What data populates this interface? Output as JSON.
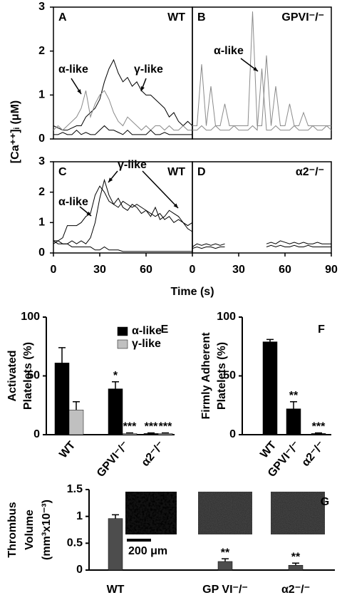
{
  "chart_data": [
    {
      "type": "line",
      "label": "A",
      "title": "WT",
      "ylabel": "[Ca⁺⁺]ᵢ (μM)",
      "xlim": [
        0,
        90
      ],
      "ylim": [
        0,
        3
      ],
      "yticks": [
        0,
        1,
        2,
        3
      ],
      "annotations": [
        "α-like",
        "γ-like"
      ],
      "x": [
        0,
        3,
        6,
        9,
        12,
        15,
        18,
        21,
        24,
        27,
        30,
        33,
        36,
        39,
        42,
        45,
        48,
        51,
        54,
        57,
        60,
        63,
        66,
        69,
        72,
        75,
        78,
        81,
        84,
        87,
        90
      ],
      "series": [
        {
          "color": "#000000",
          "values": [
            0.3,
            0.25,
            0.2,
            0.2,
            0.25,
            0.3,
            0.3,
            0.5,
            0.6,
            0.7,
            0.9,
            1.3,
            1.6,
            1.8,
            1.5,
            1.3,
            1.4,
            1.2,
            1.3,
            1.1,
            1.0,
            1.0,
            0.9,
            0.8,
            0.7,
            0.5,
            0.6,
            0.4,
            0.3,
            0.4,
            0.3
          ]
        },
        {
          "color": "#8a8a8a",
          "values": [
            0.2,
            0.3,
            0.2,
            0.3,
            0.4,
            0.5,
            0.7,
            1.1,
            0.5,
            0.8,
            1.0,
            1.1,
            0.9,
            0.6,
            0.4,
            0.3,
            0.5,
            0.4,
            0.3,
            0.2,
            0.3,
            0.2,
            0.3,
            0.3,
            0.2,
            0.3,
            0.2,
            0.2,
            0.3,
            0.2,
            0.2
          ]
        },
        {
          "color": "#000000",
          "values": [
            0.1,
            0.1,
            0.15,
            0.1,
            0.1,
            0.2,
            0.1,
            0.15,
            0.1,
            0.1,
            0.2,
            0.3,
            0.2,
            0.2,
            0.15,
            0.1,
            0.2,
            0.1,
            0.1,
            0.1,
            0.1,
            0.2,
            0.1,
            0.1,
            0.15,
            0.1,
            0.1,
            0.1,
            0.1,
            0.1,
            0.1
          ]
        }
      ]
    },
    {
      "type": "line",
      "label": "B",
      "title": "GPVI⁻/⁻",
      "xlim": [
        0,
        90
      ],
      "ylim": [
        0,
        3
      ],
      "annotations": [
        "α-like"
      ],
      "x": [
        0,
        3,
        6,
        9,
        12,
        15,
        18,
        21,
        24,
        27,
        30,
        33,
        36,
        39,
        42,
        45,
        48,
        51,
        54,
        57,
        60,
        63,
        66,
        69,
        72,
        75,
        78,
        81,
        84,
        87,
        90
      ],
      "series": [
        {
          "color": "#8a8a8a",
          "values": [
            0.3,
            0.3,
            1.7,
            0.3,
            1.2,
            0.3,
            0.3,
            0.8,
            0.3,
            0.3,
            0.3,
            0.3,
            0.3,
            2.9,
            0.3,
            0.3,
            1.9,
            0.3,
            1.2,
            0.3,
            0.3,
            0.8,
            0.3,
            0.3,
            0.6,
            0.3,
            0.3,
            0.3,
            0.3,
            0.3,
            0.3
          ]
        },
        {
          "color": "#8a8a8a",
          "values": [
            0.2,
            0.2,
            0.3,
            0.2,
            0.2,
            0.3,
            0.2,
            0.2,
            0.2,
            0.3,
            0.2,
            0.2,
            0.2,
            0.3,
            0.2,
            1.6,
            0.2,
            0.2,
            0.3,
            0.2,
            0.2,
            0.2,
            0.3,
            0.2,
            0.2,
            0.2,
            0.3,
            0.2,
            0.2,
            0.3,
            0.2
          ]
        }
      ]
    },
    {
      "type": "line",
      "label": "C",
      "title": "WT",
      "xlabel": "Time (s)",
      "xlim": [
        0,
        90
      ],
      "ylim": [
        0,
        3
      ],
      "yticks": [
        0,
        1,
        2,
        3
      ],
      "xticks": [
        0,
        30,
        60
      ],
      "annotations": [
        "α-like",
        "γ-like"
      ],
      "x": [
        0,
        3,
        6,
        9,
        12,
        15,
        18,
        21,
        24,
        27,
        30,
        33,
        36,
        39,
        42,
        45,
        48,
        51,
        54,
        57,
        60,
        63,
        66,
        69,
        72,
        75,
        78,
        81,
        84,
        87,
        90
      ],
      "series": [
        {
          "color": "#000000",
          "values": [
            0.4,
            0.4,
            0.5,
            0.9,
            0.9,
            0.9,
            1.0,
            1.2,
            1.3,
            1.9,
            2.2,
            2.0,
            1.7,
            1.6,
            1.5,
            1.7,
            1.6,
            1.5,
            1.6,
            1.5,
            1.4,
            1.3,
            1.2,
            1.3,
            1.1,
            1.2,
            1.0,
            1.1,
            1.0,
            0.9,
            1.0
          ]
        },
        {
          "color": "#000000",
          "values": [
            0.3,
            0.4,
            0.3,
            0.3,
            0.4,
            0.3,
            0.4,
            0.3,
            0.5,
            1.0,
            1.8,
            2.4,
            1.9,
            1.6,
            1.8,
            1.5,
            1.4,
            1.6,
            1.5,
            1.3,
            1.4,
            1.2,
            1.5,
            1.1,
            1.2,
            1.4,
            1.3,
            1.2,
            1.0,
            0.8,
            0.7
          ]
        },
        {
          "color": "#000000",
          "values": [
            0.4,
            0.3,
            0.3,
            0.3,
            0.2,
            0.2,
            0.2,
            0.2,
            0.2,
            0.1,
            0.1,
            0.2,
            0.1,
            0.1,
            0.1,
            0.05,
            0.05,
            0.05,
            0.05,
            0.05,
            0.05,
            0.05,
            0.05,
            0.05,
            0.05,
            0.05,
            0.05,
            0.05,
            0.05,
            0.05,
            0.05
          ]
        }
      ]
    },
    {
      "type": "line",
      "label": "D",
      "title": "α2⁻/⁻",
      "xlim": [
        0,
        90
      ],
      "ylim": [
        0,
        3
      ],
      "xticks": [
        0,
        30,
        60,
        90
      ],
      "x": [
        0,
        3,
        6,
        9,
        12,
        15,
        18,
        21,
        24,
        27,
        30,
        33,
        36,
        39,
        42,
        45,
        48,
        51,
        54,
        57,
        60,
        63,
        66,
        69,
        72,
        75,
        78,
        81,
        84,
        87,
        90
      ],
      "series": [
        {
          "color": "#000000",
          "values": [
            0.2,
            0.3,
            0.25,
            0.3,
            0.25,
            0.3,
            0.25,
            0.3,
            null,
            null,
            null,
            null,
            null,
            null,
            null,
            null,
            0.3,
            0.35,
            0.3,
            0.4,
            0.35,
            0.3,
            0.35,
            0.3,
            0.35,
            0.3,
            0.3,
            0.35,
            0.3,
            0.3,
            0.3
          ]
        },
        {
          "color": "#000000",
          "values": [
            0.15,
            0.2,
            0.15,
            0.2,
            0.2,
            0.15,
            0.2,
            0.2,
            null,
            null,
            null,
            null,
            null,
            null,
            null,
            null,
            0.2,
            0.25,
            0.2,
            0.25,
            0.2,
            0.2,
            0.25,
            0.2,
            0.2,
            0.25,
            0.2,
            0.2,
            0.2,
            0.2,
            0.2
          ]
        }
      ]
    },
    {
      "type": "bar",
      "label": "E",
      "ylabel": [
        "Activated",
        "Platelets (%)"
      ],
      "ylim": [
        0,
        100
      ],
      "yticks": [
        0,
        50,
        100
      ],
      "categories": [
        "WT",
        "GPVI⁻/⁻",
        "α2⁻/⁻"
      ],
      "series": [
        {
          "name": "α-like",
          "color": "#000000",
          "values": [
            61,
            39,
            1
          ],
          "errors": [
            13,
            6,
            0.5
          ],
          "significance": [
            null,
            "*",
            "***"
          ]
        },
        {
          "name": "γ-like",
          "color": "#c0c0c0",
          "values": [
            21,
            1,
            1
          ],
          "errors": [
            7,
            0.5,
            0.5
          ],
          "significance": [
            null,
            "***",
            "***"
          ]
        }
      ]
    },
    {
      "type": "bar",
      "label": "F",
      "ylabel": [
        "Firmly Adherent",
        "Platelets (%)"
      ],
      "ylim": [
        0,
        100
      ],
      "yticks": [
        0,
        50,
        100
      ],
      "categories": [
        "WT",
        "GPVI⁻/⁻",
        "α2⁻/⁻"
      ],
      "series": [
        {
          "color": "#000000",
          "values": [
            79,
            22,
            1
          ],
          "errors": [
            2,
            6,
            0.5
          ],
          "significance": [
            null,
            "**",
            "***"
          ]
        }
      ]
    },
    {
      "type": "bar",
      "label": "G",
      "ylabel": [
        "Thrombus",
        "Volume",
        "(mm³x10⁻³)"
      ],
      "ylim": [
        0,
        1.5
      ],
      "yticks": [
        0,
        0.5,
        1,
        1.5
      ],
      "scale_bar": "200 μm",
      "categories": [
        "WT",
        "GP VI⁻/⁻",
        "α2⁻/⁻"
      ],
      "series": [
        {
          "color": "#4d4d4d",
          "values": [
            0.96,
            0.16,
            0.09
          ],
          "errors": [
            0.07,
            0.05,
            0.04
          ],
          "significance": [
            null,
            "**",
            "**"
          ]
        }
      ]
    }
  ]
}
